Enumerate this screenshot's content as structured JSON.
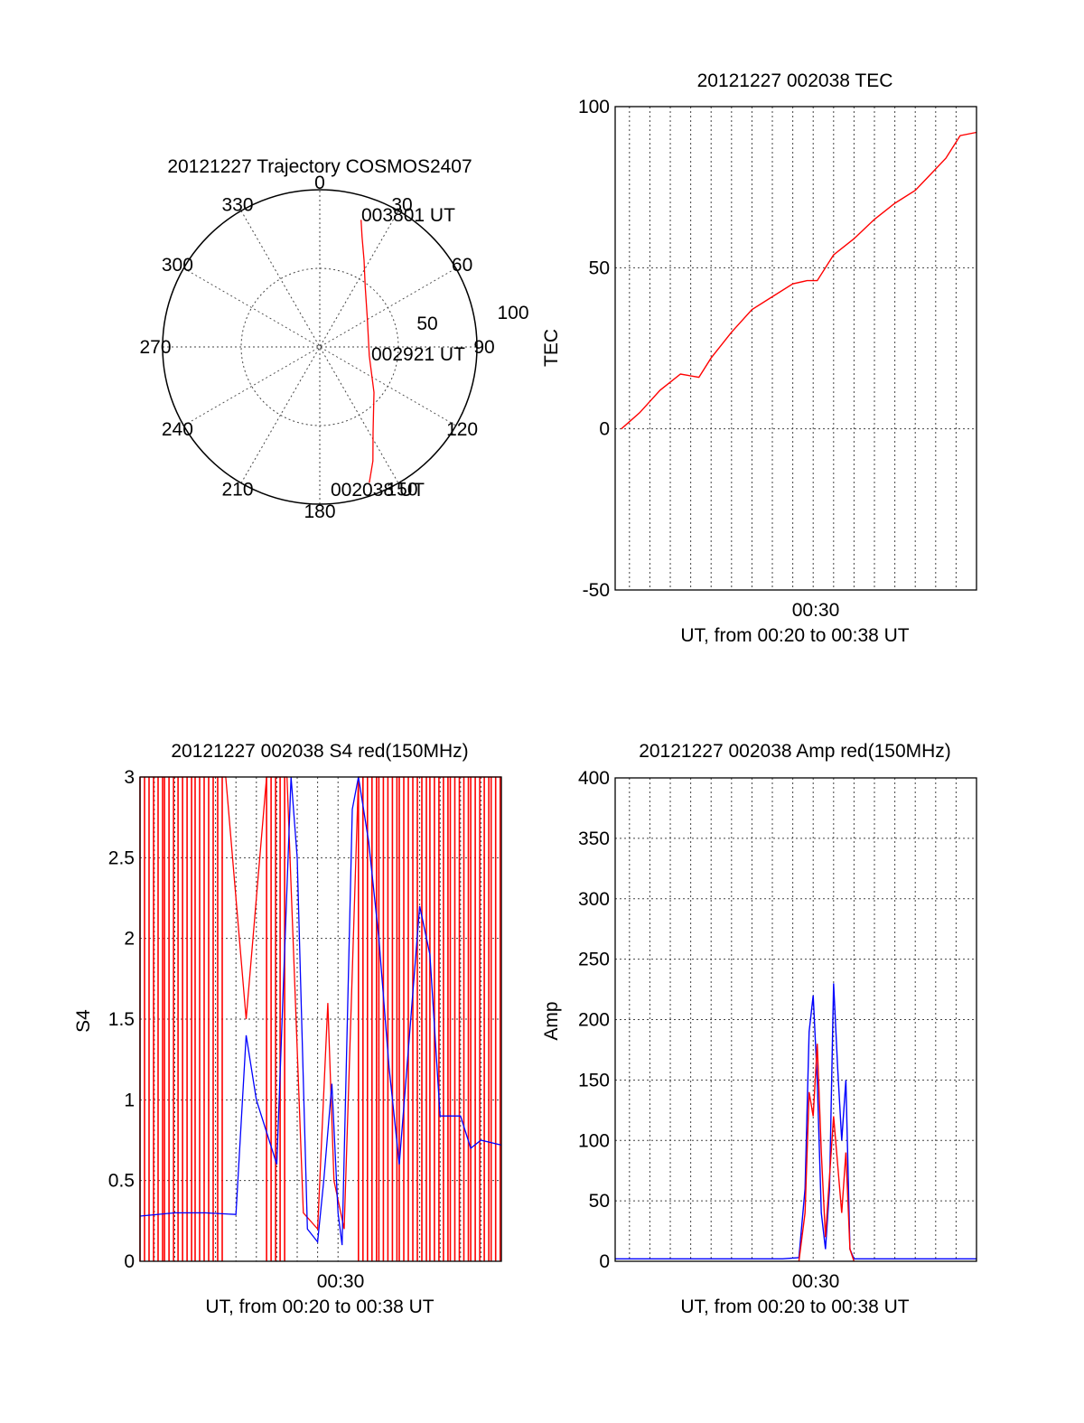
{
  "colors": {
    "red": "#ff0000",
    "blue": "#0000ff",
    "axis": "#000000"
  },
  "chart_data": [
    {
      "type": "polar",
      "title": "20121227 Trajectory COSMOS2407",
      "angle_labels": [
        "0",
        "30",
        "60",
        "90",
        "120",
        "150",
        "180",
        "210",
        "240",
        "270",
        "300",
        "330"
      ],
      "radial_labels": [
        "50",
        "100"
      ],
      "angle_direction": "clockwise from top",
      "annotations": [
        "003801 UT",
        "002921 UT",
        "002038 UT"
      ],
      "series": [
        {
          "color": "red",
          "points": [
            {
              "angle": 18,
              "radius": 85
            },
            {
              "angle": 21,
              "radius": 75
            },
            {
              "angle": 27,
              "radius": 62
            },
            {
              "angle": 37,
              "radius": 48
            },
            {
              "angle": 60,
              "radius": 35
            },
            {
              "angle": 100,
              "radius": 32
            },
            {
              "angle": 130,
              "radius": 45
            },
            {
              "angle": 148,
              "radius": 64
            },
            {
              "angle": 155,
              "radius": 80
            },
            {
              "angle": 160,
              "radius": 92
            }
          ]
        }
      ]
    },
    {
      "type": "line",
      "title": "20121227 002038 TEC",
      "ylabel": "TEC",
      "xlabel": "UT, from 00:20 to 00:38 UT",
      "xtick_labels": [
        "00:30"
      ],
      "ylim": [
        -50,
        100
      ],
      "yticks": [
        "100",
        "50",
        "0",
        "-50"
      ],
      "xlim_minutes": [
        20.3,
        38.0
      ],
      "grid": true,
      "series": [
        {
          "color": "red",
          "x": [
            20.6,
            21.5,
            22.5,
            23.5,
            24.4,
            25.0,
            26.0,
            27.0,
            28.0,
            29.0,
            29.7,
            30.2,
            31.0,
            32.0,
            33.0,
            34.0,
            35.0,
            35.6,
            36.5,
            37.2,
            38.0
          ],
          "y": [
            0,
            5,
            12,
            17,
            16,
            22,
            30,
            37,
            41,
            45,
            46,
            46,
            54,
            59,
            65,
            70,
            74,
            78,
            84,
            91,
            92
          ]
        }
      ]
    },
    {
      "type": "line",
      "title": "20121227 002038 S4 red(150MHz)",
      "ylabel": "S4",
      "xlabel": "UT, from 00:20 to 00:38 UT",
      "xtick_labels": [
        "00:30"
      ],
      "ylim": [
        0,
        3
      ],
      "yticks": [
        "3",
        "2.5",
        "2",
        "1.5",
        "1",
        "0.5",
        "0"
      ],
      "xlim_minutes": [
        20.3,
        38.0
      ],
      "grid": true,
      "series": [
        {
          "color": "blue",
          "x": [
            20.3,
            22.0,
            23.5,
            25.0,
            25.5,
            26.0,
            27.0,
            27.7,
            28.0,
            28.5,
            29.0,
            29.3,
            29.7,
            30.0,
            30.2,
            30.7,
            31.0,
            31.5,
            32.0,
            32.5,
            33.0,
            33.5,
            34.0,
            34.5,
            35.0,
            36.0,
            36.5,
            37.0,
            38.0
          ],
          "y": [
            0.28,
            0.3,
            0.3,
            0.29,
            1.4,
            1.0,
            0.6,
            3.0,
            2.5,
            0.2,
            0.12,
            0.5,
            1.1,
            0.3,
            0.1,
            2.8,
            3.0,
            2.6,
            2.0,
            1.2,
            0.6,
            1.4,
            2.2,
            1.9,
            0.9,
            0.9,
            0.7,
            0.75,
            0.72
          ]
        },
        {
          "color": "red",
          "x": [
            20.3,
            21.5,
            23.0,
            24.5,
            25.5,
            26.5,
            27.5,
            28.3,
            29.0,
            29.5,
            29.8,
            30.3,
            31.0,
            32.0,
            33.0,
            34.5,
            35.5,
            36.5,
            37.5,
            38.0
          ],
          "y": [
            3.0,
            3.0,
            3.0,
            3.0,
            1.5,
            3.0,
            3.0,
            0.3,
            0.2,
            1.6,
            0.5,
            0.2,
            3.0,
            3.0,
            3.0,
            3.0,
            3.0,
            3.0,
            3.0,
            3.0
          ]
        }
      ]
    },
    {
      "type": "line",
      "title": "20121227 002038 Amp red(150MHz)",
      "ylabel": "Amp",
      "xlabel": "UT, from 00:20 to 00:38 UT",
      "xtick_labels": [
        "00:30"
      ],
      "ylim": [
        0,
        400
      ],
      "yticks": [
        "400",
        "350",
        "300",
        "250",
        "200",
        "150",
        "100",
        "50",
        "0"
      ],
      "xlim_minutes": [
        20.3,
        38.0
      ],
      "grid": true,
      "series": [
        {
          "color": "blue",
          "x": [
            20.3,
            25.0,
            28.5,
            29.3,
            29.6,
            29.8,
            30.0,
            30.2,
            30.4,
            30.6,
            30.8,
            31.0,
            31.2,
            31.4,
            31.6,
            31.8,
            32.0,
            33.0,
            38.0
          ],
          "y": [
            2,
            2,
            2,
            3,
            60,
            190,
            220,
            150,
            40,
            10,
            60,
            230,
            160,
            100,
            150,
            10,
            2,
            2,
            2
          ]
        },
        {
          "color": "red",
          "x": [
            29.3,
            29.6,
            29.8,
            30.0,
            30.2,
            30.4,
            30.6,
            30.8,
            31.0,
            31.2,
            31.4,
            31.6,
            31.8,
            32.0
          ],
          "y": [
            0,
            40,
            140,
            120,
            180,
            90,
            20,
            70,
            120,
            80,
            40,
            90,
            10,
            0
          ]
        }
      ]
    }
  ]
}
